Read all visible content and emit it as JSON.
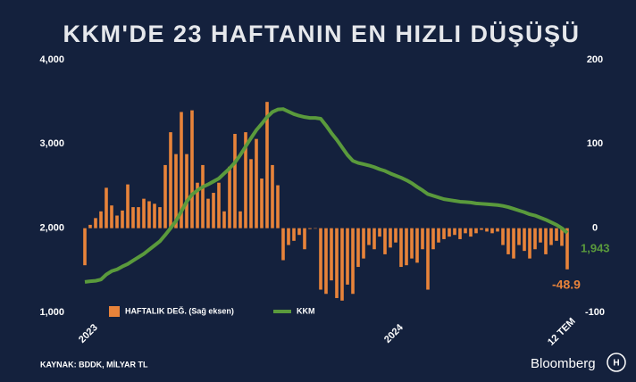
{
  "chart_data": {
    "type": "bar-line",
    "title": "KKM'DE 23 HAFTANIN EN HIZLI DÜŞÜŞÜ",
    "categories": [
      "2023",
      null,
      null,
      null,
      null,
      null,
      null,
      null,
      null,
      null,
      null,
      null,
      null,
      null,
      null,
      null,
      null,
      null,
      null,
      null,
      null,
      null,
      null,
      null,
      null,
      null,
      null,
      null,
      null,
      null,
      null,
      null,
      null,
      null,
      null,
      null,
      null,
      null,
      null,
      null,
      null,
      null,
      null,
      null,
      null,
      null,
      null,
      null,
      null,
      null,
      null,
      null,
      null,
      null,
      null,
      null,
      null,
      "2024",
      null,
      null,
      null,
      null,
      null,
      null,
      null,
      null,
      null,
      null,
      null,
      null,
      null,
      null,
      null,
      null,
      null,
      null,
      null,
      null,
      null,
      null,
      null,
      null,
      null,
      null,
      null,
      null,
      null,
      null,
      null,
      null,
      "12 TEM"
    ],
    "series": [
      {
        "name": "HAFTALIK DEĞ. (Sağ eksen)",
        "color": "#e8833a",
        "axis": "y2",
        "values": [
          -44,
          4,
          12,
          20,
          48,
          27,
          15,
          21,
          52,
          25,
          25,
          35,
          32,
          29,
          25,
          75,
          114,
          88,
          138,
          88,
          140,
          54,
          75,
          35,
          42,
          54,
          20,
          73,
          112,
          20,
          114,
          82,
          106,
          59,
          150,
          75,
          51,
          -38,
          -20,
          -15,
          -8,
          -25,
          -1,
          0,
          -73,
          -78,
          -62,
          -83,
          -86,
          -67,
          -78,
          -46,
          -36,
          -20,
          -25,
          -10,
          -31,
          -23,
          -17,
          -46,
          -44,
          -36,
          -41,
          -25,
          -73,
          -25,
          -17,
          -13,
          -10,
          -8,
          -13,
          -6,
          -10,
          -6,
          -2,
          -4,
          -6,
          -4,
          -20,
          -31,
          -36,
          -20,
          -27,
          -36,
          -25,
          -17,
          -31,
          -20,
          -15,
          -21,
          -48.9
        ]
      },
      {
        "name": "KKM",
        "color": "#5a9a3c",
        "type": "line",
        "values": [
          1362,
          1370,
          1375,
          1390,
          1450,
          1490,
          1510,
          1545,
          1575,
          1615,
          1655,
          1695,
          1745,
          1795,
          1845,
          1920,
          2000,
          2085,
          2200,
          2315,
          2400,
          2450,
          2490,
          2520,
          2555,
          2590,
          2650,
          2710,
          2780,
          2870,
          2970,
          3070,
          3165,
          3240,
          3320,
          3380,
          3410,
          3415,
          3385,
          3355,
          3335,
          3320,
          3310,
          3310,
          3300,
          3220,
          3130,
          3050,
          2960,
          2870,
          2800,
          2775,
          2760,
          2745,
          2725,
          2700,
          2680,
          2650,
          2625,
          2600,
          2570,
          2535,
          2490,
          2450,
          2405,
          2385,
          2365,
          2345,
          2335,
          2325,
          2315,
          2310,
          2305,
          2295,
          2290,
          2285,
          2280,
          2275,
          2265,
          2250,
          2230,
          2210,
          2190,
          2165,
          2150,
          2125,
          2100,
          2070,
          2040,
          2000,
          1943
        ],
        "value_labels": [
          null,
          null,
          null,
          null,
          null,
          null,
          null,
          null,
          null,
          null,
          null,
          null,
          null,
          null,
          null,
          null,
          null,
          null,
          null,
          null,
          null,
          null,
          null,
          null,
          null,
          null,
          null,
          null,
          null,
          null,
          null,
          null,
          null,
          null,
          null,
          null,
          null,
          null,
          null,
          null,
          null,
          null,
          null,
          null,
          null,
          null,
          null,
          null,
          null,
          null,
          null,
          null,
          null,
          null,
          null,
          null,
          null,
          null,
          null,
          null,
          null,
          null,
          null,
          null,
          null,
          null,
          null,
          null,
          null,
          null,
          null,
          null,
          null,
          null,
          null,
          null,
          null,
          null,
          null,
          null,
          null,
          null,
          null,
          null,
          null,
          null,
          null,
          null,
          null,
          null,
          "1,943"
        ]
      }
    ],
    "ylim": [
      1000,
      4000
    ],
    "yticks": [
      {
        "value": 1000,
        "label": "1,000"
      },
      {
        "value": 2000,
        "label": "2,000"
      },
      {
        "value": 3000,
        "label": "3,000"
      },
      {
        "value": 4000,
        "label": "4,000"
      }
    ],
    "y2lim": [
      -100,
      200
    ],
    "y2ticks": [
      -100,
      0,
      100,
      200
    ],
    "grid": false,
    "source": "KAYNAK: BDDK, MİLYAR TL",
    "brand": "Bloomberg"
  }
}
